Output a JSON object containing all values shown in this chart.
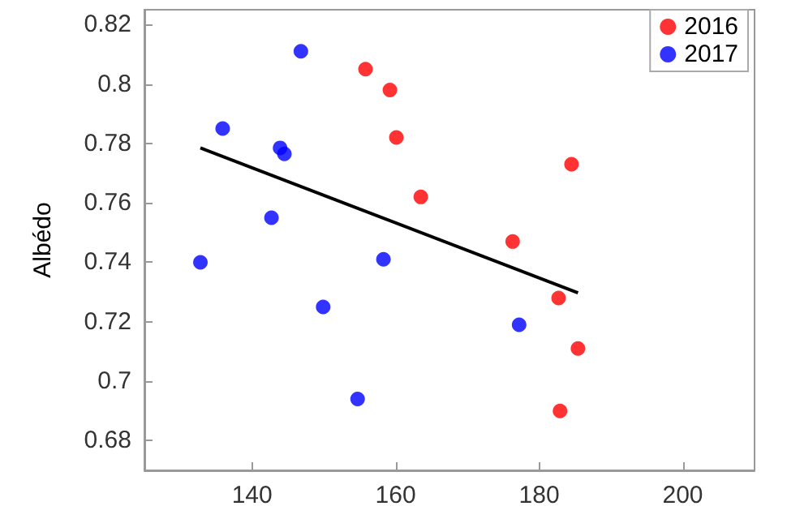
{
  "chart_data": {
    "type": "scatter",
    "ylabel": "Albédo",
    "xlim": [
      125,
      210
    ],
    "xticks": [
      140,
      160,
      180,
      200
    ],
    "ylim": [
      0.67,
      0.825
    ],
    "yticks": [
      0.68,
      0.7,
      0.72,
      0.74,
      0.76,
      0.78,
      0.8,
      0.82
    ],
    "grid": false,
    "legend": "top right",
    "marker": "circle",
    "series": [
      {
        "name": "2016",
        "color": "#ff0000",
        "x": [
          155.8,
          159.2,
          160.1,
          163.5,
          176.3,
          184.5,
          182.7,
          185.4,
          182.9
        ],
        "values": [
          0.805,
          0.798,
          0.782,
          0.762,
          0.747,
          0.773,
          0.728,
          0.711,
          0.69
        ]
      },
      {
        "name": "2017",
        "color": "#0000ff",
        "x": [
          146.8,
          135.9,
          143.9,
          144.5,
          142.7,
          132.8,
          158.3,
          149.9,
          177.2,
          154.7
        ],
        "values": [
          0.811,
          0.785,
          0.7785,
          0.7765,
          0.755,
          0.74,
          0.741,
          0.725,
          0.719,
          0.694
        ]
      },
      {
        "type": "line",
        "color": "#000000",
        "marker": "none",
        "x": [
          132.8,
          185.4
        ],
        "values": [
          0.7785,
          0.7297
        ]
      }
    ]
  }
}
